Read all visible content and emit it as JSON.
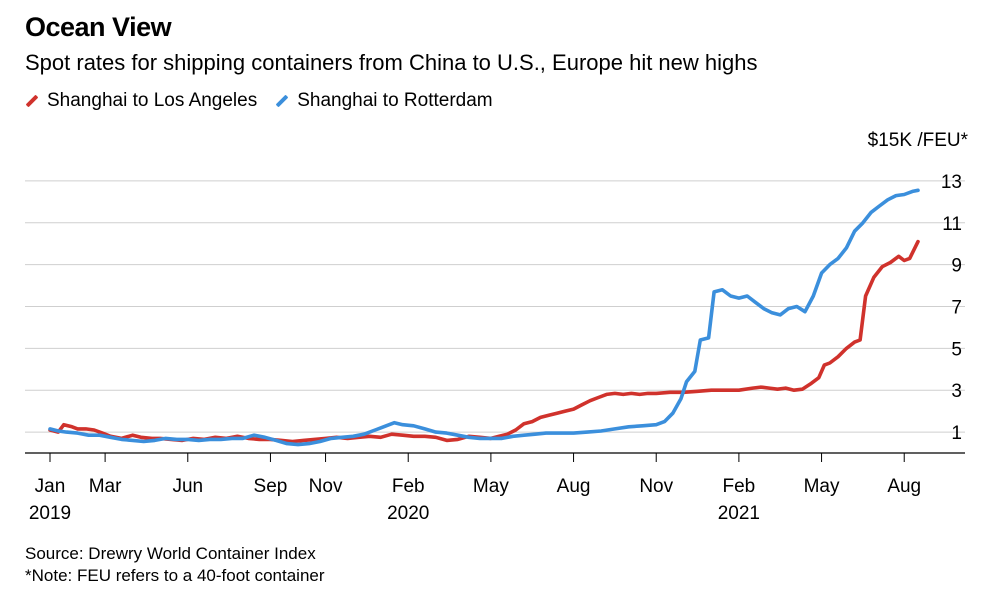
{
  "header": {
    "title": "Ocean View",
    "subtitle": "Spot rates for shipping containers from China to U.S., Europe hit new highs"
  },
  "legend": [
    {
      "label": "Shanghai to Los Angeles",
      "color": "#d0322c"
    },
    {
      "label": "Shanghai to Rotterdam",
      "color": "#3b8fdc"
    }
  ],
  "footer": {
    "source": "Source: Drewry World Container Index",
    "note": "*Note: FEU refers to a 40-foot container"
  },
  "chart_data": {
    "type": "line",
    "y_unit_label": "$15K /FEU*",
    "ylim": [
      0,
      14
    ],
    "yticks": [
      1,
      3,
      5,
      7,
      9,
      11,
      13
    ],
    "grid": true,
    "x_ticks": [
      {
        "month": 0,
        "label": "Jan",
        "year": "2019"
      },
      {
        "month": 2,
        "label": "Mar",
        "year": ""
      },
      {
        "month": 5,
        "label": "Jun",
        "year": ""
      },
      {
        "month": 8,
        "label": "Sep",
        "year": ""
      },
      {
        "month": 10,
        "label": "Nov",
        "year": ""
      },
      {
        "month": 13,
        "label": "Feb",
        "year": "2020"
      },
      {
        "month": 16,
        "label": "May",
        "year": ""
      },
      {
        "month": 19,
        "label": "Aug",
        "year": ""
      },
      {
        "month": 22,
        "label": "Nov",
        "year": ""
      },
      {
        "month": 25,
        "label": "Feb",
        "year": "2021"
      },
      {
        "month": 28,
        "label": "May",
        "year": ""
      },
      {
        "month": 31,
        "label": "Aug",
        "year": ""
      }
    ],
    "xlim": [
      0,
      31.5
    ],
    "series": [
      {
        "name": "Shanghai to Los Angeles",
        "color": "#d0322c",
        "points": [
          [
            0,
            1.1
          ],
          [
            0.3,
            1.0
          ],
          [
            0.5,
            1.35
          ],
          [
            0.8,
            1.25
          ],
          [
            1.0,
            1.15
          ],
          [
            1.3,
            1.15
          ],
          [
            1.6,
            1.1
          ],
          [
            1.9,
            0.95
          ],
          [
            2.2,
            0.8
          ],
          [
            2.6,
            0.7
          ],
          [
            3.0,
            0.85
          ],
          [
            3.3,
            0.75
          ],
          [
            3.7,
            0.7
          ],
          [
            4.0,
            0.7
          ],
          [
            4.4,
            0.65
          ],
          [
            4.8,
            0.6
          ],
          [
            5.2,
            0.7
          ],
          [
            5.6,
            0.65
          ],
          [
            6.0,
            0.75
          ],
          [
            6.4,
            0.7
          ],
          [
            6.8,
            0.8
          ],
          [
            7.2,
            0.7
          ],
          [
            7.6,
            0.65
          ],
          [
            8.0,
            0.65
          ],
          [
            8.4,
            0.6
          ],
          [
            8.8,
            0.55
          ],
          [
            9.2,
            0.6
          ],
          [
            9.6,
            0.65
          ],
          [
            10.0,
            0.7
          ],
          [
            10.4,
            0.75
          ],
          [
            10.8,
            0.7
          ],
          [
            11.2,
            0.75
          ],
          [
            11.6,
            0.8
          ],
          [
            12.0,
            0.75
          ],
          [
            12.4,
            0.9
          ],
          [
            12.8,
            0.85
          ],
          [
            13.2,
            0.8
          ],
          [
            13.6,
            0.8
          ],
          [
            14.0,
            0.75
          ],
          [
            14.4,
            0.6
          ],
          [
            14.8,
            0.65
          ],
          [
            15.2,
            0.8
          ],
          [
            15.6,
            0.75
          ],
          [
            16.0,
            0.7
          ],
          [
            16.3,
            0.8
          ],
          [
            16.6,
            0.9
          ],
          [
            16.9,
            1.1
          ],
          [
            17.2,
            1.4
          ],
          [
            17.5,
            1.5
          ],
          [
            17.8,
            1.7
          ],
          [
            18.1,
            1.8
          ],
          [
            18.4,
            1.9
          ],
          [
            18.7,
            2.0
          ],
          [
            19.0,
            2.1
          ],
          [
            19.3,
            2.3
          ],
          [
            19.6,
            2.5
          ],
          [
            19.9,
            2.65
          ],
          [
            20.2,
            2.8
          ],
          [
            20.5,
            2.85
          ],
          [
            20.8,
            2.8
          ],
          [
            21.1,
            2.85
          ],
          [
            21.4,
            2.8
          ],
          [
            21.7,
            2.85
          ],
          [
            22.0,
            2.85
          ],
          [
            22.5,
            2.9
          ],
          [
            23.0,
            2.9
          ],
          [
            23.5,
            2.95
          ],
          [
            24.0,
            3.0
          ],
          [
            24.5,
            3.0
          ],
          [
            25.0,
            3.0
          ],
          [
            25.5,
            3.1
          ],
          [
            25.8,
            3.15
          ],
          [
            26.1,
            3.1
          ],
          [
            26.4,
            3.05
          ],
          [
            26.7,
            3.1
          ],
          [
            27.0,
            3.0
          ],
          [
            27.3,
            3.05
          ],
          [
            27.6,
            3.3
          ],
          [
            27.9,
            3.6
          ],
          [
            28.1,
            4.2
          ],
          [
            28.3,
            4.3
          ],
          [
            28.6,
            4.6
          ],
          [
            28.9,
            5.0
          ],
          [
            29.2,
            5.3
          ],
          [
            29.4,
            5.4
          ],
          [
            29.6,
            7.5
          ],
          [
            29.9,
            8.4
          ],
          [
            30.2,
            8.9
          ],
          [
            30.5,
            9.1
          ],
          [
            30.8,
            9.4
          ],
          [
            31.0,
            9.2
          ],
          [
            31.2,
            9.3
          ],
          [
            31.5,
            10.1
          ]
        ]
      },
      {
        "name": "Shanghai to Rotterdam",
        "color": "#3b8fdc",
        "points": [
          [
            0,
            1.15
          ],
          [
            0.3,
            1.05
          ],
          [
            0.6,
            1.0
          ],
          [
            1.0,
            0.95
          ],
          [
            1.4,
            0.85
          ],
          [
            1.8,
            0.85
          ],
          [
            2.2,
            0.75
          ],
          [
            2.6,
            0.65
          ],
          [
            3.0,
            0.6
          ],
          [
            3.4,
            0.55
          ],
          [
            3.8,
            0.6
          ],
          [
            4.2,
            0.7
          ],
          [
            4.6,
            0.65
          ],
          [
            5.0,
            0.65
          ],
          [
            5.4,
            0.6
          ],
          [
            5.8,
            0.65
          ],
          [
            6.2,
            0.65
          ],
          [
            6.6,
            0.7
          ],
          [
            7.0,
            0.7
          ],
          [
            7.4,
            0.85
          ],
          [
            7.8,
            0.75
          ],
          [
            8.2,
            0.6
          ],
          [
            8.6,
            0.45
          ],
          [
            9.0,
            0.4
          ],
          [
            9.4,
            0.45
          ],
          [
            9.8,
            0.55
          ],
          [
            10.2,
            0.7
          ],
          [
            10.6,
            0.75
          ],
          [
            11.0,
            0.8
          ],
          [
            11.4,
            0.9
          ],
          [
            11.8,
            1.1
          ],
          [
            12.2,
            1.3
          ],
          [
            12.5,
            1.45
          ],
          [
            12.8,
            1.35
          ],
          [
            13.2,
            1.3
          ],
          [
            13.6,
            1.15
          ],
          [
            14.0,
            1.0
          ],
          [
            14.4,
            0.95
          ],
          [
            14.8,
            0.85
          ],
          [
            15.2,
            0.75
          ],
          [
            15.6,
            0.7
          ],
          [
            16.0,
            0.7
          ],
          [
            16.4,
            0.7
          ],
          [
            16.8,
            0.8
          ],
          [
            17.2,
            0.85
          ],
          [
            17.6,
            0.9
          ],
          [
            18.0,
            0.95
          ],
          [
            18.5,
            0.95
          ],
          [
            19.0,
            0.95
          ],
          [
            19.5,
            1.0
          ],
          [
            20.0,
            1.05
          ],
          [
            20.5,
            1.15
          ],
          [
            21.0,
            1.25
          ],
          [
            21.5,
            1.3
          ],
          [
            22.0,
            1.35
          ],
          [
            22.3,
            1.5
          ],
          [
            22.6,
            1.9
          ],
          [
            22.9,
            2.6
          ],
          [
            23.1,
            3.4
          ],
          [
            23.4,
            3.9
          ],
          [
            23.6,
            5.4
          ],
          [
            23.9,
            5.5
          ],
          [
            24.1,
            7.7
          ],
          [
            24.4,
            7.8
          ],
          [
            24.7,
            7.5
          ],
          [
            25.0,
            7.4
          ],
          [
            25.3,
            7.5
          ],
          [
            25.6,
            7.2
          ],
          [
            25.9,
            6.9
          ],
          [
            26.2,
            6.7
          ],
          [
            26.5,
            6.6
          ],
          [
            26.8,
            6.9
          ],
          [
            27.1,
            7.0
          ],
          [
            27.4,
            6.75
          ],
          [
            27.7,
            7.5
          ],
          [
            28.0,
            8.6
          ],
          [
            28.3,
            9.0
          ],
          [
            28.6,
            9.3
          ],
          [
            28.9,
            9.8
          ],
          [
            29.2,
            10.6
          ],
          [
            29.5,
            11.0
          ],
          [
            29.8,
            11.5
          ],
          [
            30.1,
            11.8
          ],
          [
            30.4,
            12.1
          ],
          [
            30.7,
            12.3
          ],
          [
            31.0,
            12.35
          ],
          [
            31.3,
            12.5
          ],
          [
            31.5,
            12.55
          ]
        ]
      }
    ]
  }
}
